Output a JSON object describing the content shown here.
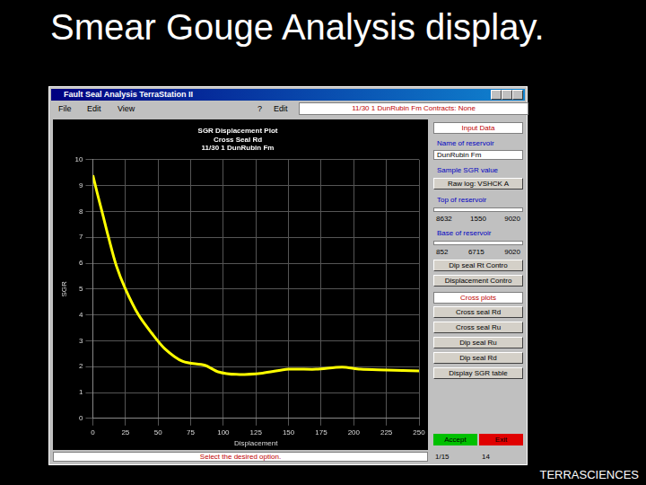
{
  "slide": {
    "title": "Smear Gouge Analysis display.",
    "footer": "TERRASCIENCES"
  },
  "window": {
    "title": "Fault Seal Analysis    TerraStation II",
    "menu": [
      "File",
      "Edit",
      "View",
      "?",
      "Edit"
    ],
    "info_field": "11/30 1 DunRubin Fm   Contracts: None",
    "status": "Select the desired option.",
    "status_fields": [
      "1/15",
      "14"
    ]
  },
  "panel": {
    "items": [
      {
        "kind": "header",
        "text": "Input Data"
      },
      {
        "kind": "label",
        "text": "Name of reservoir"
      },
      {
        "kind": "field",
        "text": "DunRubin Fm"
      },
      {
        "kind": "label",
        "text": "Sample SGR value"
      },
      {
        "kind": "button",
        "text": "Raw log: VSHCK A"
      },
      {
        "kind": "label",
        "text": "Top of reservoir"
      },
      {
        "kind": "slider"
      },
      {
        "kind": "numbers",
        "texts": [
          "8632",
          "1550",
          "9020"
        ]
      },
      {
        "kind": "label",
        "text": "Base of reservoir"
      },
      {
        "kind": "slider"
      },
      {
        "kind": "numbers",
        "texts": [
          "852",
          "6715",
          "9020"
        ]
      },
      {
        "kind": "button",
        "text": "Dip seal Rt Contro"
      },
      {
        "kind": "button",
        "text": "Displacement Contro"
      },
      {
        "kind": "header",
        "text": "Cross plots"
      },
      {
        "kind": "button",
        "text": "Cross seal Rd"
      },
      {
        "kind": "button",
        "text": "Cross seal Ru"
      },
      {
        "kind": "button",
        "text": "Dip seal Ru"
      },
      {
        "kind": "button",
        "text": "Dip seal Rd"
      },
      {
        "kind": "button",
        "text": "Display SGR table"
      }
    ],
    "accept": "Accept",
    "exit": "Exit"
  },
  "chart_data": {
    "type": "line",
    "title": [
      "SGR Displacement Plot",
      "Cross Seal Rd",
      "11/30 1 DunRubin Fm"
    ],
    "x_label": "Displacement",
    "y_label": "SGR",
    "x": [
      0,
      3.4,
      7.5,
      12,
      18,
      25,
      35,
      45,
      55,
      69,
      86,
      96,
      110,
      130,
      150,
      171,
      191,
      205,
      225,
      250
    ],
    "values": [
      9.4,
      8.7,
      7.9,
      7.0,
      5.9,
      5.0,
      4.0,
      3.3,
      2.7,
      2.2,
      2.05,
      1.8,
      1.7,
      1.75,
      1.9,
      1.9,
      1.98,
      1.9,
      1.87,
      1.83
    ],
    "color": "#ffff00",
    "line_style": "solid",
    "xlim": [
      0,
      250
    ],
    "xticks": [
      0,
      25,
      50,
      75,
      100,
      125,
      150,
      175,
      200,
      225,
      250
    ],
    "ylim": [
      0,
      10
    ],
    "yticks": [
      0,
      1,
      2,
      3,
      4,
      5,
      6,
      7,
      8,
      9,
      10
    ],
    "grid": true
  }
}
